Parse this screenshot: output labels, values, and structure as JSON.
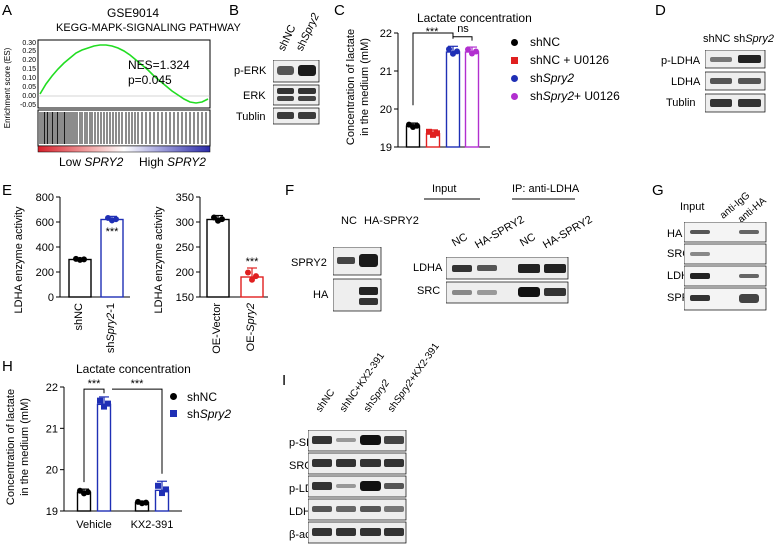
{
  "panels": {
    "A": {
      "letter": "A",
      "dataset": "GSE9014",
      "title": "KEGG-MAPK-SIGNALING PATHWAY",
      "ylabel": "Enrichment score (ES)",
      "nes": "NES=1.324",
      "pval": "p=0.045",
      "low_label": "Low ",
      "low_gene": "SPRY2",
      "high_label": "High ",
      "high_gene": "SPRY2",
      "colors": {
        "curve": "#22dd22",
        "low": "#d61f2a",
        "high": "#2a2aa8"
      }
    },
    "B": {
      "letter": "B",
      "lanes": [
        "shNC",
        "sh"
      ],
      "lane2_italic": "Spry2",
      "rows": [
        "p-ERK",
        "ERK",
        "Tublin"
      ]
    },
    "C": {
      "letter": "C",
      "title": "Lactate concentration",
      "ylabel_line1": "Concentration of lactate",
      "ylabel_line2": "in the medium (mM)",
      "sig_star": "***",
      "sig_ns": "ns",
      "legend": [
        {
          "pre": "shNC",
          "it": "",
          "post": "",
          "color": "#000000",
          "shape": "circle"
        },
        {
          "pre": "shNC + U0126",
          "it": "",
          "post": "",
          "color": "#e02020",
          "shape": "square"
        },
        {
          "pre": "sh",
          "it": "Spry2",
          "post": "",
          "color": "#1f2fb5",
          "shape": "circle"
        },
        {
          "pre": "sh",
          "it": "Spry2",
          "post": " + U0126",
          "color": "#b12fcf",
          "shape": "circle"
        }
      ],
      "chart_data": {
        "type": "bar",
        "title": "Lactate concentration",
        "ylabel": "Concentration of lactate in the medium (mM)",
        "categories": [
          "shNC",
          "shNC + U0126",
          "shSpry2",
          "shSpry2 + U0126"
        ],
        "values": [
          19.55,
          19.35,
          21.5,
          21.5
        ],
        "errors": [
          0.08,
          0.1,
          0.15,
          0.13
        ],
        "ylim": [
          19,
          22
        ],
        "yticks": [
          19,
          20,
          21,
          22
        ],
        "colors": [
          "#000000",
          "#e02020",
          "#1f2fb5",
          "#b12fcf"
        ]
      }
    },
    "D": {
      "letter": "D",
      "lanes": [
        "shNC",
        "sh"
      ],
      "lane2_italic": "Spry2",
      "rows": [
        "p-LDHA",
        "LDHA",
        "Tublin"
      ]
    },
    "E": {
      "letter": "E",
      "ylabel": "LDHA enzyme activity",
      "sig": "***",
      "chart_data": [
        {
          "type": "bar",
          "ylabel": "LDHA enzyme activity",
          "categories": [
            "shNC",
            "shSpry2-1"
          ],
          "values": [
            300,
            620
          ],
          "errors": [
            10,
            25
          ],
          "ylim": [
            0,
            800
          ],
          "yticks": [
            0,
            200,
            400,
            600,
            800
          ],
          "colors": [
            "#000000",
            "#1f2fb5"
          ]
        },
        {
          "type": "bar",
          "ylabel": "LDHA enzyme activity",
          "categories": [
            "OE-Vector",
            "OE-Spry2"
          ],
          "values": [
            305,
            190
          ],
          "errors": [
            8,
            18
          ],
          "ylim": [
            150,
            350
          ],
          "yticks": [
            150,
            200,
            250,
            300,
            350
          ],
          "colors": [
            "#000000",
            "#e02020"
          ]
        }
      ],
      "xlabels": [
        {
          "pre": "shNC",
          "it": "",
          "post": ""
        },
        {
          "pre": "sh",
          "it": "Spry2",
          "post": "-1"
        },
        {
          "pre": "OE-Vector",
          "it": "",
          "post": ""
        },
        {
          "pre": "OE-",
          "it": "Spry2",
          "post": ""
        }
      ]
    },
    "F": {
      "letter": "F",
      "left_lanes": [
        "NC",
        "HA-SPRY2"
      ],
      "left_rows": [
        "SPRY2",
        "HA"
      ],
      "input_label": "Input",
      "ip_label": "IP: anti-LDHA",
      "right_lanes": [
        "NC",
        "HA-SPRY2",
        "NC",
        "HA-SPRY2"
      ],
      "right_rows": [
        "LDHA",
        "SRC"
      ]
    },
    "G": {
      "letter": "G",
      "lanes": [
        "Input",
        "anti-IgG",
        "anti-HA"
      ],
      "rows": [
        "HA",
        "SRC",
        "LDHA",
        "SPRY2"
      ]
    },
    "H": {
      "letter": "H",
      "title": "Lactate concentration",
      "ylabel_line1": "Concentration of lactate",
      "ylabel_line2": "in the medium (mM)",
      "sig": "***",
      "legend": [
        {
          "pre": "shNC",
          "it": "",
          "color": "#000000",
          "shape": "circle"
        },
        {
          "pre": "sh",
          "it": "Spry2",
          "color": "#1f2fb5",
          "shape": "square"
        }
      ],
      "chart_data": {
        "type": "bar",
        "title": "Lactate concentration",
        "ylabel": "Concentration of lactate in the medium (mM)",
        "categories": [
          "Vehicle",
          "KX2-391"
        ],
        "series": [
          {
            "name": "shNC",
            "values": [
              19.45,
              19.2
            ],
            "errors": [
              0.08,
              0.04
            ]
          },
          {
            "name": "shSpry2",
            "values": [
              21.58,
              19.5
            ],
            "errors": [
              0.18,
              0.22
            ]
          }
        ],
        "ylim": [
          19,
          22
        ],
        "yticks": [
          19,
          20,
          21,
          22
        ],
        "colors": [
          "#000000",
          "#1f2fb5"
        ]
      }
    },
    "I": {
      "letter": "I",
      "lanes": [
        {
          "pre": "shNC",
          "it": "",
          "post": ""
        },
        {
          "pre": "shNC+KX2-391",
          "it": "",
          "post": ""
        },
        {
          "pre": "sh",
          "it": "Spry2",
          "post": ""
        },
        {
          "pre": "sh",
          "it": "Spry2",
          "post": "+KX2-391"
        }
      ],
      "rows": [
        "p-SRC",
        "SRC",
        "p-LDHA",
        "LDHA",
        "β-actin"
      ]
    }
  }
}
